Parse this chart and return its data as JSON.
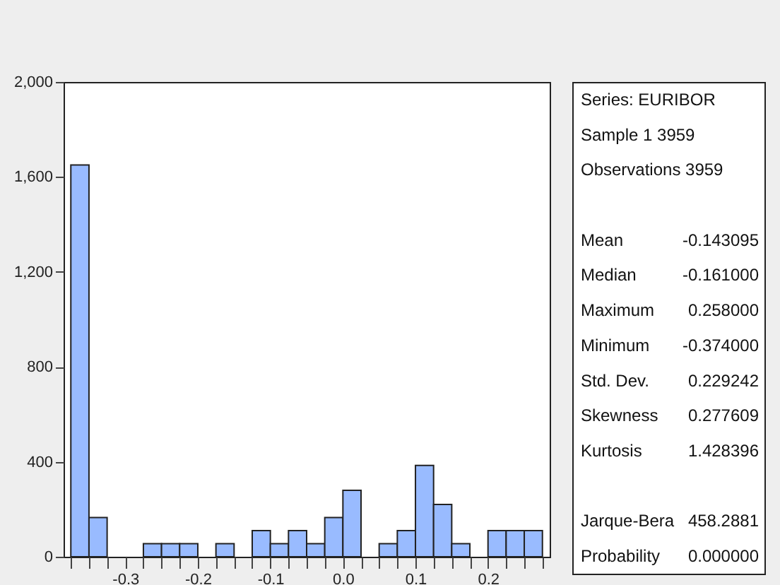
{
  "chart_data": [
    {
      "type": "histogram",
      "bins": [
        -0.375,
        -0.35,
        -0.325,
        -0.3,
        -0.275,
        -0.25,
        -0.225,
        -0.2,
        -0.175,
        -0.15,
        -0.125,
        -0.1,
        -0.075,
        -0.05,
        -0.025,
        0,
        0.025,
        0.05,
        0.075,
        0.1,
        0.125,
        0.15,
        0.175,
        0.2,
        0.225,
        0.25,
        0.275
      ],
      "values": [
        1650,
        165,
        0,
        0,
        55,
        55,
        55,
        0,
        55,
        0,
        110,
        55,
        110,
        55,
        165,
        280,
        0,
        55,
        110,
        385,
        220,
        55,
        0,
        110,
        110,
        110
      ],
      "color": "#99bbff",
      "xlim": [
        -0.385,
        0.285
      ],
      "xticks": [
        {
          "value": -0.375,
          "label": null
        },
        {
          "value": -0.35,
          "label": null
        },
        {
          "value": -0.325,
          "label": null
        },
        -0.3,
        {
          "value": -0.275,
          "label": null
        },
        {
          "value": -0.25,
          "label": null
        },
        {
          "value": -0.225,
          "label": null
        },
        -0.2,
        {
          "value": -0.175,
          "label": null
        },
        {
          "value": -0.15,
          "label": null
        },
        {
          "value": -0.125,
          "label": null
        },
        -0.1,
        {
          "value": -0.075,
          "label": null
        },
        {
          "value": -0.05,
          "label": null
        },
        {
          "value": -0.025,
          "label": null
        },
        {
          "value": 0,
          "label": "0.0"
        },
        {
          "value": 0.025,
          "label": null
        },
        {
          "value": 0.05,
          "label": null
        },
        {
          "value": 0.075,
          "label": null
        },
        0.1,
        {
          "value": 0.125,
          "label": null
        },
        {
          "value": 0.15,
          "label": null
        },
        {
          "value": 0.175,
          "label": null
        },
        0.2,
        {
          "value": 0.225,
          "label": null
        },
        {
          "value": 0.25,
          "label": null
        },
        {
          "value": 0.275,
          "label": null
        }
      ],
      "ylim": [
        0,
        2000
      ],
      "yticks": [
        {
          "value": 0,
          "label": "0"
        },
        {
          "value": 400,
          "label": "400"
        },
        {
          "value": 800,
          "label": "800"
        },
        {
          "value": 1200,
          "label": "1,200"
        },
        {
          "value": 1600,
          "label": "1,600"
        },
        {
          "value": 2000,
          "label": "2,000"
        }
      ],
      "grid": false,
      "legend": false
    },
    {
      "type": "other",
      "title": "Series: EURIBOR",
      "subtitle": "Sample 1 3959",
      "annotations": [
        "Observations 3959"
      ],
      "categories": [
        "Mean",
        "Median",
        "Maximum",
        "Minimum",
        "Std. Dev.",
        "Skewness",
        "Kurtosis",
        null,
        "Jarque-Bera",
        "Probability"
      ],
      "value_labels": [
        "-0.143095",
        "-0.161000",
        "0.258000",
        "-0.374000",
        "0.229242",
        "0.277609",
        "1.428396",
        null,
        "458.2881",
        "0.000000"
      ]
    }
  ]
}
